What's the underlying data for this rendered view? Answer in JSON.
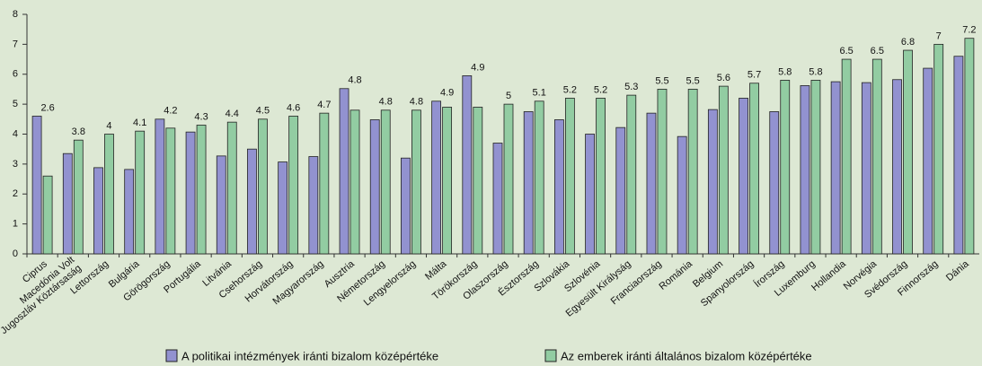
{
  "chart_data": {
    "type": "bar",
    "categories": [
      "Ciprus",
      "Macedónia Volt\nJugoszláv Köztársaság",
      "Lettország",
      "Bulgária",
      "Görögország",
      "Portugália",
      "Litvánia",
      "Csehország",
      "Horvátország",
      "Magyarország",
      "Ausztria",
      "Németország",
      "Lengyelország",
      "Málta",
      "Törökország",
      "Olaszország",
      "Észtország",
      "Szlovákia",
      "Szlovénia",
      "Egyesült Királyság",
      "Franciaország",
      "Románia",
      "Belgium",
      "Spanyolország",
      "Írország",
      "Luxemburg",
      "Hollandia",
      "Norvégia",
      "Svédország",
      "Finnország",
      "Dánia"
    ],
    "series": [
      {
        "name": "A politikai intézmények iránti bizalom középértéke",
        "color": "#9292d0",
        "values": [
          4.6,
          3.35,
          2.88,
          2.82,
          4.5,
          4.07,
          3.27,
          3.5,
          3.07,
          3.25,
          5.52,
          4.48,
          3.2,
          5.1,
          5.95,
          3.7,
          4.75,
          4.48,
          4.0,
          4.22,
          4.7,
          3.92,
          4.82,
          5.2,
          4.75,
          5.62,
          5.75,
          5.72,
          5.82,
          6.2,
          6.6
        ]
      },
      {
        "name": "Az emberek iránti általános bizalom középértéke",
        "color": "#92cca2",
        "values": [
          2.6,
          3.8,
          4,
          4.1,
          4.2,
          4.3,
          4.4,
          4.5,
          4.6,
          4.7,
          4.8,
          4.8,
          4.8,
          4.9,
          4.9,
          5,
          5.1,
          5.2,
          5.2,
          5.3,
          5.5,
          5.5,
          5.6,
          5.7,
          5.8,
          5.8,
          6.5,
          6.5,
          6.8,
          7,
          7.2
        ]
      }
    ],
    "ylim": [
      0,
      8
    ],
    "yticks": [
      0,
      1,
      2,
      3,
      4,
      5,
      6,
      7,
      8
    ]
  }
}
